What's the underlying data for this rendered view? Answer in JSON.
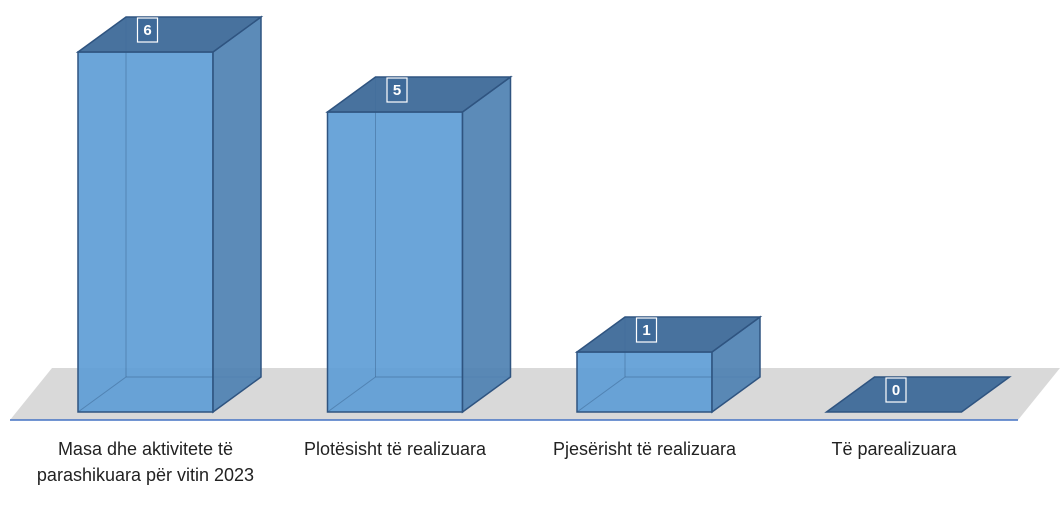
{
  "chart_data": {
    "type": "bar3d",
    "categories": [
      "Masa dhe aktivitete të parashikuara për vitin 2023",
      "Plotësisht të realizuara",
      "Pjesërisht të realizuara",
      "Të parealizuara"
    ],
    "values": [
      6,
      5,
      1,
      0
    ],
    "color": "#5b9bd5"
  }
}
